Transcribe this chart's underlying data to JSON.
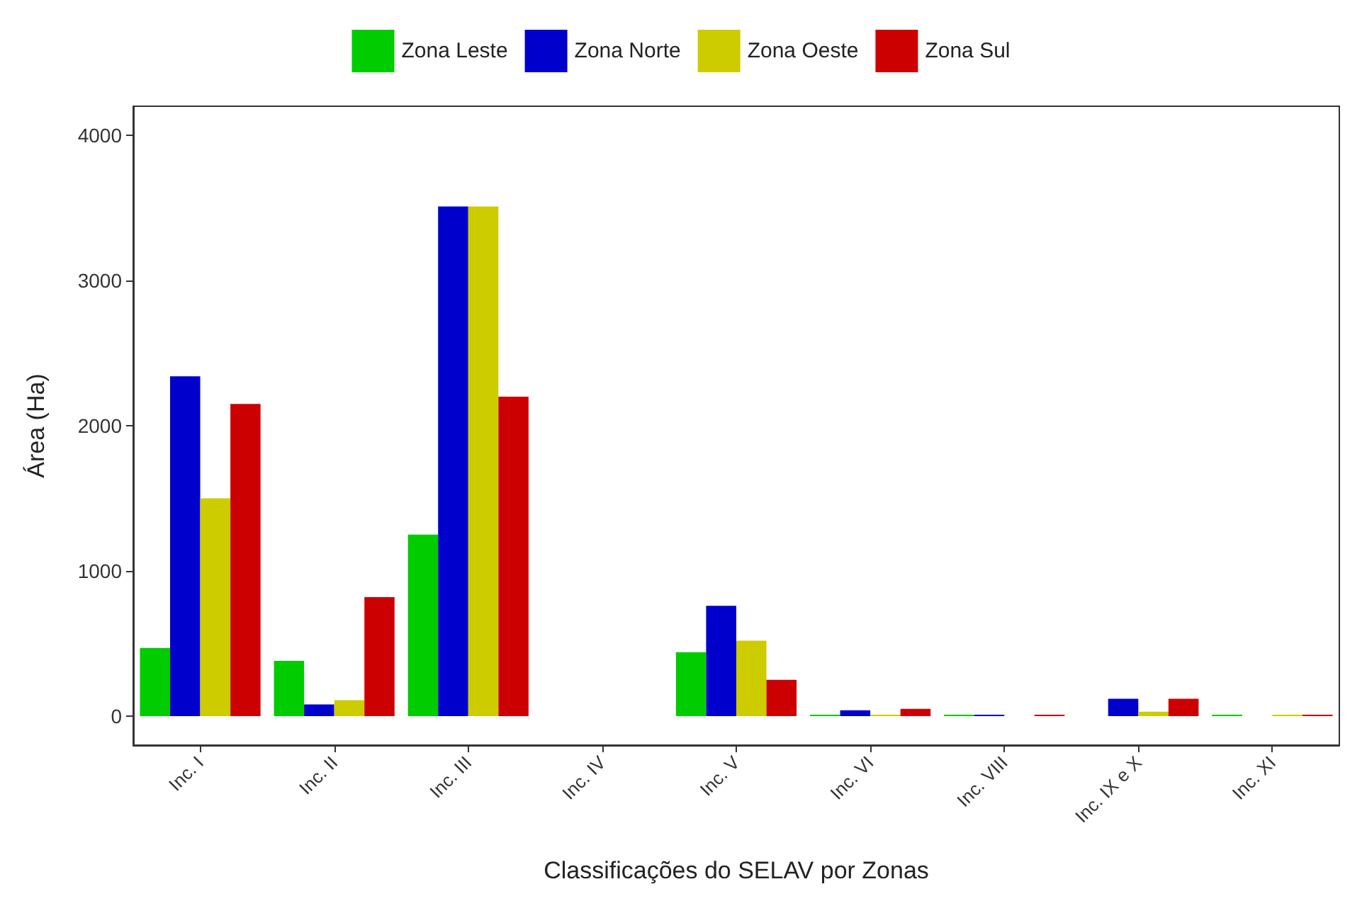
{
  "chart_data": {
    "type": "bar",
    "xlabel": "Classificações do SELAV por Zonas",
    "ylabel": "Área (Ha)",
    "categories": [
      "Inc. I",
      "Inc. II",
      "Inc. III",
      "Inc. IV",
      "Inc. V",
      "Inc. VI",
      "Inc. VIII",
      "Inc. IX e X",
      "Inc. XI"
    ],
    "series": [
      {
        "name": "Zona Leste",
        "color": "#00cc00",
        "values": [
          470,
          380,
          1250,
          null,
          440,
          10,
          10,
          null,
          10
        ]
      },
      {
        "name": "Zona Norte",
        "color": "#0000cc",
        "values": [
          2340,
          80,
          3510,
          null,
          760,
          40,
          10,
          120,
          null
        ]
      },
      {
        "name": "Zona Oeste",
        "color": "#cccc00",
        "values": [
          1500,
          110,
          3510,
          null,
          520,
          10,
          null,
          30,
          10
        ]
      },
      {
        "name": "Zona Sul",
        "color": "#cc0000",
        "values": [
          2150,
          820,
          2200,
          null,
          250,
          50,
          10,
          120,
          10
        ]
      }
    ],
    "ylim": [
      -200,
      4200
    ],
    "yticks": [
      0,
      1000,
      2000,
      3000,
      4000
    ],
    "legend": "top"
  }
}
